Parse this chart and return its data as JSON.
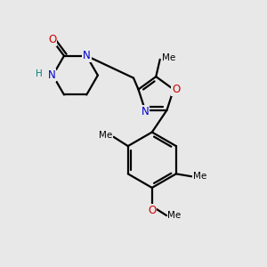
{
  "background_color": "#e8e8e8",
  "atom_colors": {
    "C": "#000000",
    "N": "#0000cc",
    "O": "#cc0000",
    "H": "#008080"
  },
  "bond_color": "#000000",
  "bond_width": 1.6,
  "font_size_atoms": 8.5,
  "font_size_labels": 7.5,
  "figsize": [
    3.0,
    3.0
  ],
  "dpi": 100,
  "xlim": [
    0,
    10
  ],
  "ylim": [
    0,
    10
  ]
}
